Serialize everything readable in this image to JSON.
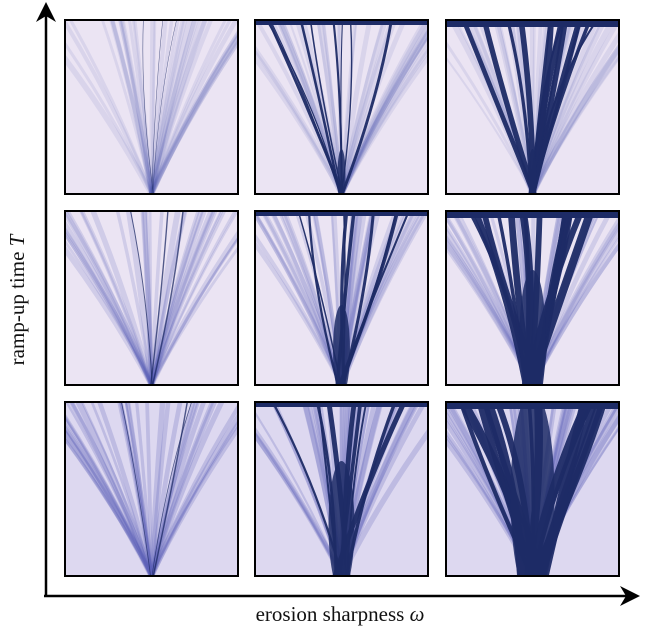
{
  "axes": {
    "x_label": "erosion sharpness ",
    "x_symbol": "ω",
    "y_label": "ramp-up time ",
    "y_symbol": "T"
  }
}
